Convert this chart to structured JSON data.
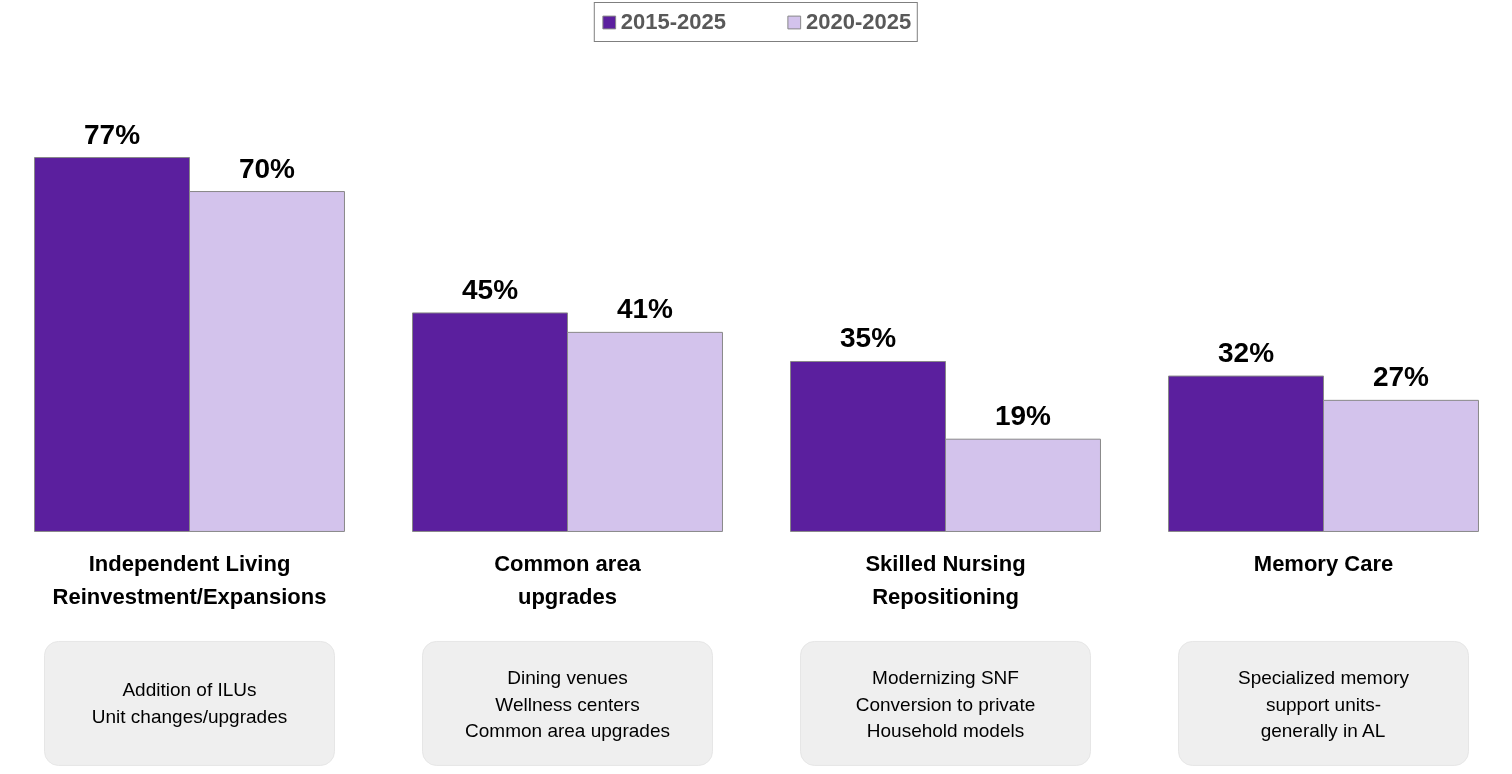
{
  "chart_data": {
    "type": "bar",
    "categories": [
      "Independent Living\nReinvestment/Expansions",
      "Common area\nupgrades",
      "Skilled Nursing\nRepositioning",
      "Memory Care"
    ],
    "series": [
      {
        "name": "2015-2025",
        "color": "#5b1f9e",
        "values": [
          77,
          45,
          35,
          32
        ],
        "value_labels": [
          "77%",
          "45%",
          "35%",
          "32%"
        ]
      },
      {
        "name": "2020-2025",
        "color": "#d3c3ec",
        "values": [
          70,
          41,
          19,
          27
        ],
        "value_labels": [
          "70%",
          "41%",
          "19%",
          "27%"
        ]
      }
    ],
    "legend": "top",
    "grid": false,
    "tick_labels": false,
    "annotations": [
      "Addition of ILUs\nUnit changes/upgrades",
      "Dining venues\nWellness centers\nCommon area upgrades",
      "Modernizing SNF\nConversion to private\nHousehold models",
      "Specialized memory\nsupport units-\ngenerally in AL"
    ]
  }
}
